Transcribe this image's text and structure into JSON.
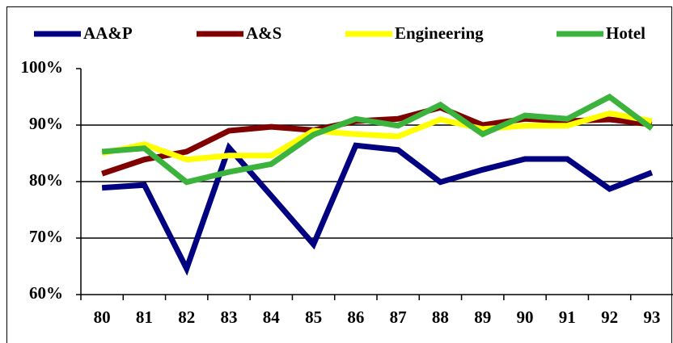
{
  "chart_data": {
    "type": "line",
    "categories": [
      "80",
      "81",
      "82",
      "83",
      "84",
      "85",
      "86",
      "87",
      "88",
      "89",
      "90",
      "91",
      "92",
      "93"
    ],
    "series": [
      {
        "name": "AA&P",
        "color": "#000080",
        "values": [
          78.9,
          79.4,
          64.6,
          86,
          77.5,
          68.9,
          86.4,
          85.6,
          79.9,
          82.1,
          84,
          84,
          78.7,
          81.6
        ]
      },
      {
        "name": "A&S",
        "color": "#800000",
        "values": [
          81.4,
          83.9,
          85.3,
          89,
          89.7,
          89.1,
          90.7,
          91.1,
          93.1,
          90,
          91.1,
          90.7,
          91,
          90.1
        ]
      },
      {
        "name": "Engineering",
        "color": "#ffff00",
        "values": [
          85,
          86.6,
          83.9,
          84.6,
          84.6,
          89,
          88.4,
          88,
          91,
          89.3,
          89.9,
          89.9,
          92.1,
          90.7
        ]
      },
      {
        "name": "Hotel",
        "color": "#3cb33c",
        "values": [
          85.3,
          85.9,
          79.9,
          81.7,
          83.1,
          88.3,
          91.1,
          89.9,
          93.6,
          88.4,
          91.7,
          91.1,
          95,
          89.4
        ]
      }
    ],
    "ylim": [
      60,
      100
    ],
    "yticks": [
      {
        "value": 60,
        "label": "60%"
      },
      {
        "value": 70,
        "label": "70%"
      },
      {
        "value": 80,
        "label": "80%"
      },
      {
        "value": 90,
        "label": "90%"
      },
      {
        "value": 100,
        "label": "100%"
      }
    ],
    "grid": true,
    "legend": "top"
  }
}
